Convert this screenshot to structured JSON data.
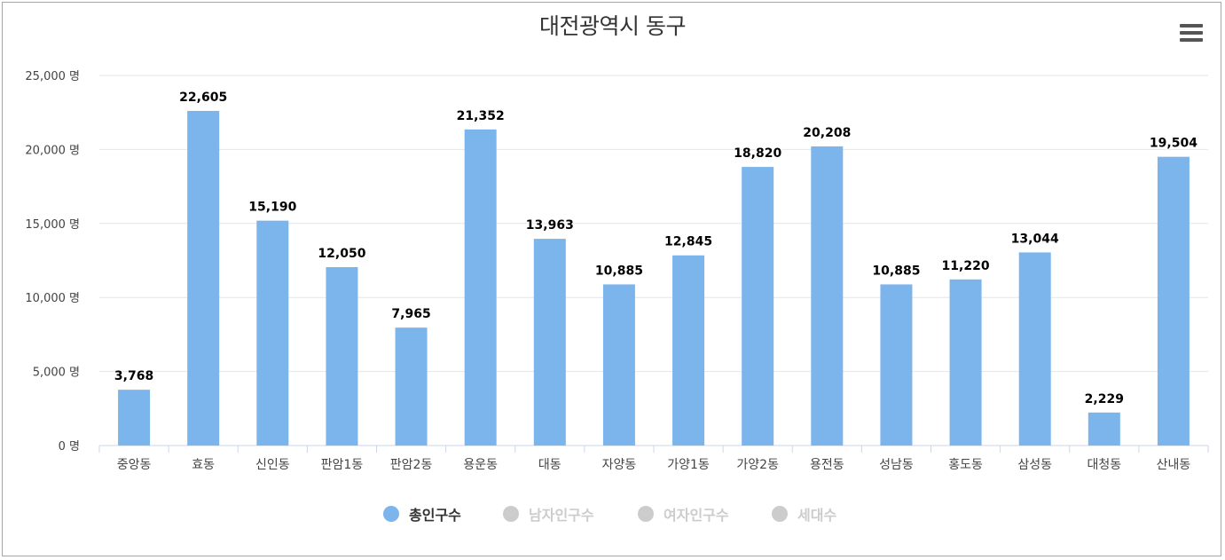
{
  "chart_data": {
    "type": "bar",
    "title": "대전광역시 동구",
    "categories": [
      "중앙동",
      "효동",
      "신인동",
      "판암1동",
      "판암2동",
      "용운동",
      "대동",
      "자양동",
      "가양1동",
      "가양2동",
      "용전동",
      "성남동",
      "홍도동",
      "삼성동",
      "대청동",
      "산내동"
    ],
    "series": [
      {
        "name": "총인구수",
        "color": "#7cb5ec",
        "visible": true,
        "values": [
          3768,
          22605,
          15190,
          12050,
          7965,
          21352,
          13963,
          10885,
          12845,
          18820,
          20208,
          10885,
          11220,
          13044,
          2229,
          19504
        ],
        "labels": [
          "3,768",
          "22,605",
          "15,190",
          "12,050",
          "7,965",
          "21,352",
          "13,963",
          "10,885",
          "12,845",
          "18,820",
          "20,208",
          "10,885",
          "11,220",
          "13,044",
          "2,229",
          "19,504"
        ]
      },
      {
        "name": "남자인구수",
        "color": "#cccccc",
        "visible": false
      },
      {
        "name": "여자인구수",
        "color": "#cccccc",
        "visible": false
      },
      {
        "name": "세대수",
        "color": "#cccccc",
        "visible": false
      }
    ],
    "ylim": [
      0,
      25000
    ],
    "yticks": [
      0,
      5000,
      10000,
      15000,
      20000,
      25000
    ],
    "ytick_labels": [
      "0 명",
      "5,000 명",
      "10,000 명",
      "15,000 명",
      "20,000 명",
      "25,000 명"
    ],
    "grid": true,
    "legend_position": "bottom-center"
  },
  "ui": {
    "menu_icon": "hamburger-menu-icon",
    "hidden_color": "#cccccc",
    "text_color": "#333333"
  }
}
